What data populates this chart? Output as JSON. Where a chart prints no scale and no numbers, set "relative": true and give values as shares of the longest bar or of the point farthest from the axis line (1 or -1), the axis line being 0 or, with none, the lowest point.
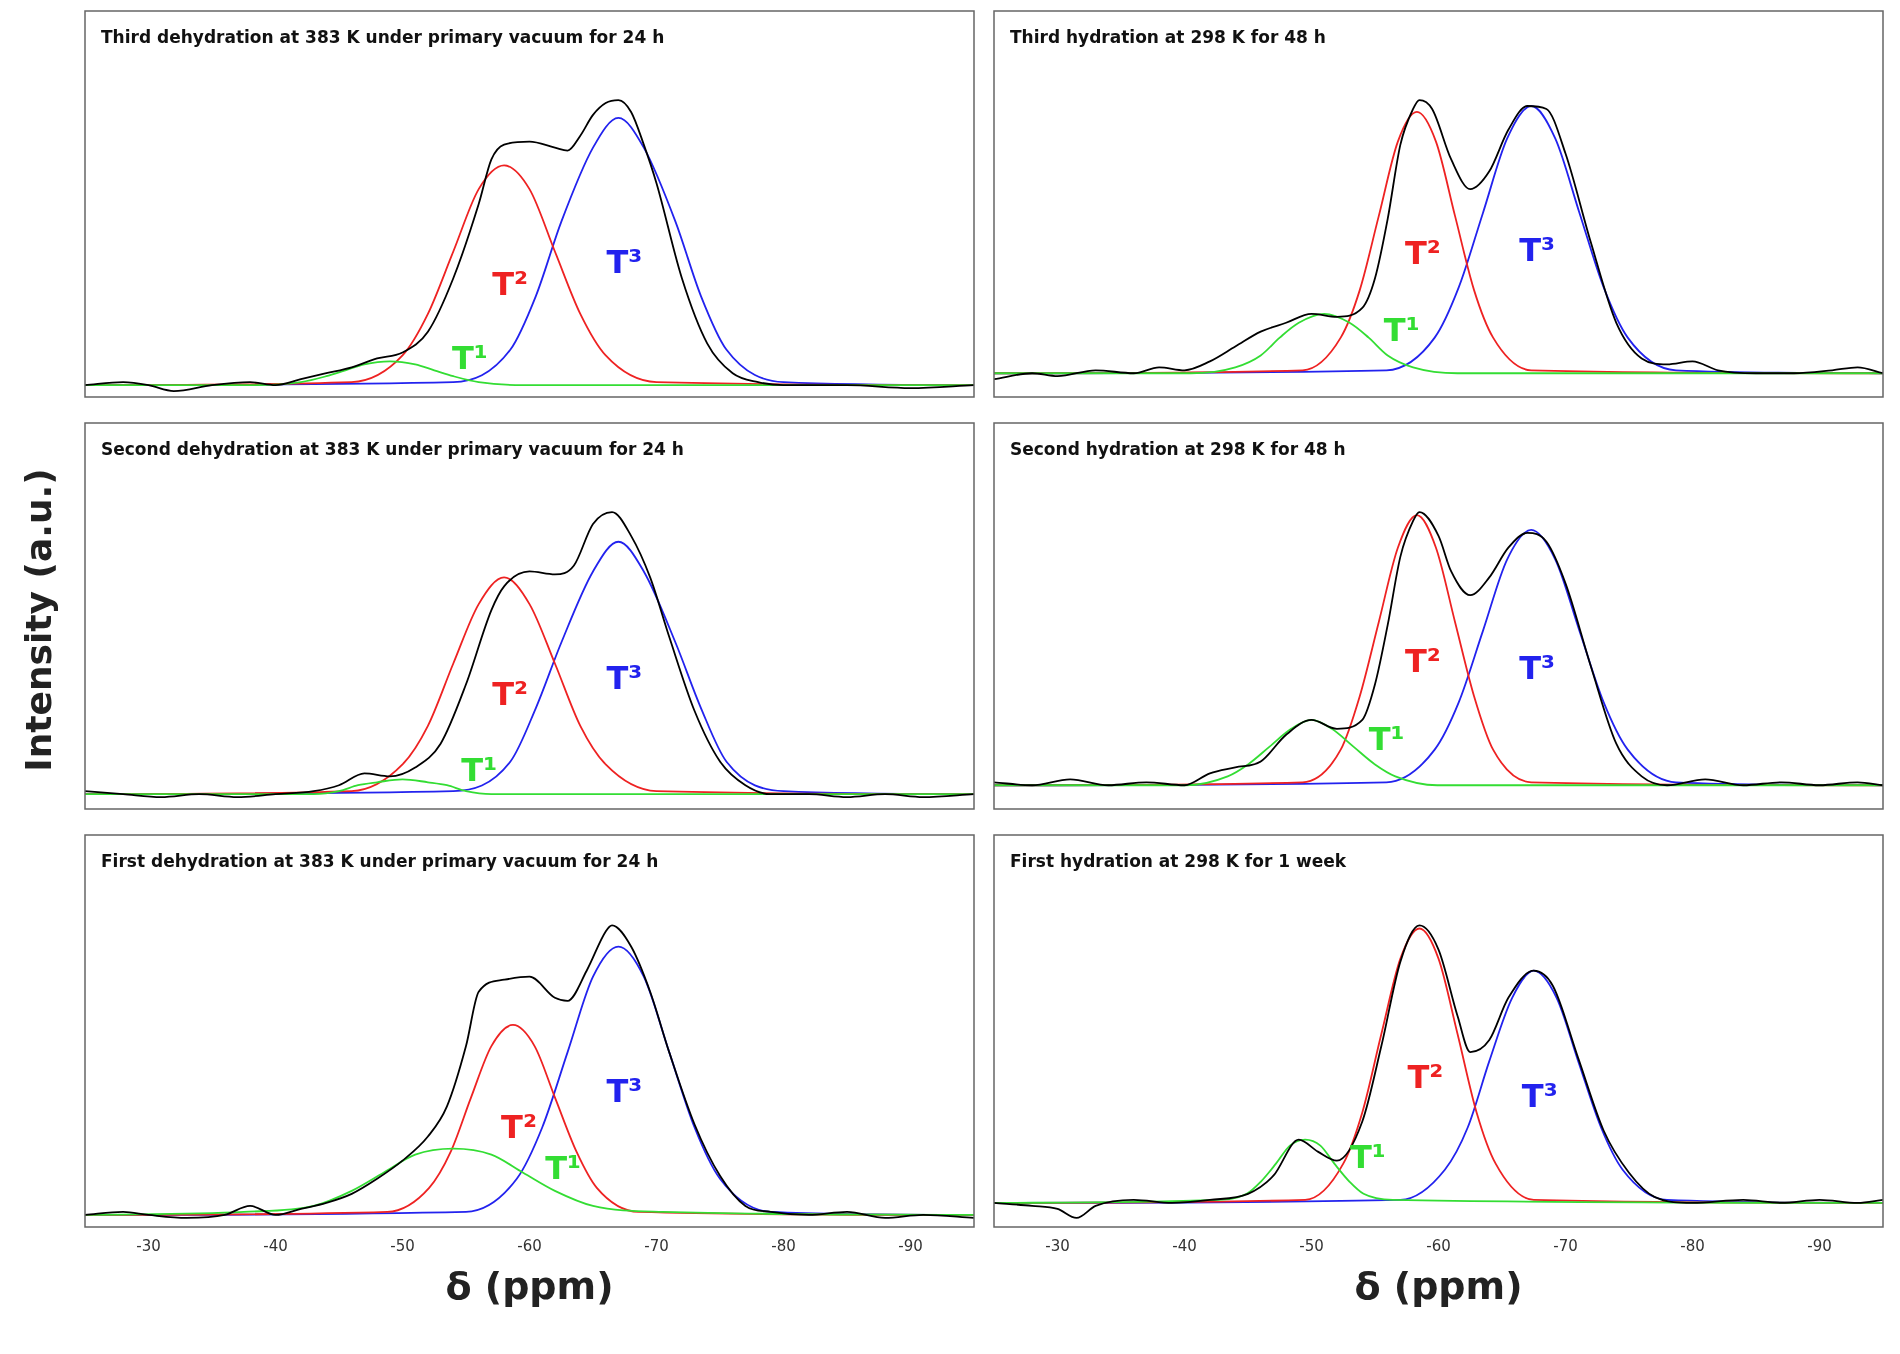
{
  "chart_data": [
    {
      "type": "line",
      "title": "Third dehydration at 383 K under primary vacuum for 24 h",
      "relative": true,
      "xlim": [
        -25,
        -95
      ],
      "tick_labels": false,
      "series": [
        {
          "color": "#000000",
          "x": [
            -25,
            -28,
            -30,
            -32,
            -35,
            -38,
            -40,
            -42,
            -44,
            -46,
            -48,
            -50,
            -52,
            -54,
            -56,
            -57,
            -58,
            -60,
            -62,
            -63,
            -64,
            -65,
            -66,
            -67,
            -68,
            -69,
            -70,
            -72,
            -74,
            -76,
            -78,
            -80,
            -85,
            -90,
            -95
          ],
          "values": [
            0.04,
            0.05,
            0.04,
            0.02,
            0.04,
            0.05,
            0.04,
            0.06,
            0.08,
            0.1,
            0.13,
            0.15,
            0.22,
            0.4,
            0.65,
            0.8,
            0.85,
            0.86,
            0.84,
            0.83,
            0.88,
            0.95,
            0.99,
            1.0,
            0.96,
            0.85,
            0.72,
            0.4,
            0.18,
            0.08,
            0.05,
            0.04,
            0.04,
            0.03,
            0.04
          ]
        },
        {
          "color": "#33dd33",
          "name": "T¹",
          "x": [
            -25,
            -38.5,
            -42,
            -44,
            -45.5,
            -47,
            -49,
            -51,
            -52.5,
            -54,
            -56,
            -59.5,
            -95
          ],
          "values": [
            0.04,
            0.04,
            0.05,
            0.07,
            0.09,
            0.11,
            0.12,
            0.11,
            0.09,
            0.07,
            0.05,
            0.04,
            0.04
          ]
        },
        {
          "color": "#ee2222",
          "name": "T²",
          "x": [
            -25,
            -46,
            -50,
            -52,
            -54,
            -56,
            -58,
            -60,
            -62,
            -64,
            -66,
            -70,
            -95
          ],
          "values": [
            0.04,
            0.05,
            0.14,
            0.28,
            0.49,
            0.7,
            0.78,
            0.7,
            0.49,
            0.28,
            0.14,
            0.05,
            0.04
          ]
        },
        {
          "color": "#2222ee",
          "name": "T³",
          "x": [
            -25,
            -54,
            -58.5,
            -60.5,
            -62.5,
            -65,
            -67,
            -69,
            -71.5,
            -73.5,
            -75.5,
            -80,
            -95
          ],
          "values": [
            0.04,
            0.05,
            0.16,
            0.34,
            0.59,
            0.84,
            0.94,
            0.84,
            0.59,
            0.34,
            0.16,
            0.05,
            0.04
          ]
        }
      ]
    },
    {
      "type": "line",
      "title": "Third hydration at 298 K for 48 h",
      "relative": true,
      "xlim": [
        -25,
        -95
      ],
      "tick_labels": false,
      "series": [
        {
          "color": "#000000",
          "x": [
            -25,
            -28,
            -30,
            -33,
            -36,
            -38,
            -40,
            -42,
            -44,
            -46,
            -48,
            -50,
            -52,
            -54,
            -55,
            -56,
            -57,
            -58,
            -58.5,
            -59.5,
            -61,
            -62.5,
            -64,
            -65.5,
            -67,
            -68.5,
            -70,
            -72,
            -74,
            -76,
            -78,
            -80,
            -82,
            -85,
            -88,
            -91,
            -93,
            -95
          ],
          "values": [
            0.06,
            0.08,
            0.07,
            0.09,
            0.08,
            0.1,
            0.09,
            0.12,
            0.17,
            0.22,
            0.25,
            0.28,
            0.27,
            0.3,
            0.4,
            0.6,
            0.85,
            0.97,
            1.0,
            0.97,
            0.8,
            0.7,
            0.76,
            0.9,
            0.98,
            0.97,
            0.82,
            0.52,
            0.25,
            0.13,
            0.11,
            0.12,
            0.09,
            0.08,
            0.08,
            0.09,
            0.1,
            0.08
          ]
        },
        {
          "color": "#33dd33",
          "name": "T¹",
          "x": [
            -25,
            -40.5,
            -44,
            -46,
            -47.5,
            -49,
            -51,
            -53,
            -54.5,
            -56,
            -58,
            -61.5,
            -95
          ],
          "values": [
            0.08,
            0.08,
            0.1,
            0.14,
            0.2,
            0.25,
            0.28,
            0.25,
            0.2,
            0.14,
            0.1,
            0.08,
            0.08
          ]
        },
        {
          "color": "#ee2222",
          "name": "T²",
          "x": [
            -25,
            -49.3,
            -52.3,
            -53.8,
            -55.3,
            -56.8,
            -58.3,
            -59.8,
            -61.3,
            -62.8,
            -64.3,
            -67.3,
            -95
          ],
          "values": [
            0.08,
            0.09,
            0.2,
            0.36,
            0.61,
            0.86,
            0.96,
            0.86,
            0.61,
            0.36,
            0.2,
            0.09,
            0.08
          ]
        },
        {
          "color": "#2222ee",
          "name": "T³",
          "x": [
            -25,
            -55.9,
            -59.7,
            -61.6,
            -63.5,
            -65.4,
            -67.3,
            -69.2,
            -71.1,
            -73,
            -74.9,
            -78.7,
            -95
          ],
          "values": [
            0.08,
            0.09,
            0.2,
            0.37,
            0.62,
            0.87,
            0.98,
            0.87,
            0.62,
            0.37,
            0.2,
            0.09,
            0.08
          ]
        }
      ]
    },
    {
      "type": "line",
      "title": "Second dehydration at 383 K under primary vacuum for 24 h",
      "ylabel": "Intensity (a.u.)",
      "relative": true,
      "xlim": [
        -25,
        -95
      ],
      "tick_labels": false,
      "series": [
        {
          "color": "#000000",
          "x": [
            -25,
            -28,
            -31,
            -34,
            -37,
            -40,
            -43,
            -45,
            -47,
            -49,
            -51,
            -53,
            -55,
            -57,
            -58,
            -60,
            -62,
            -63.5,
            -65,
            -66.5,
            -68,
            -69.5,
            -71,
            -73,
            -75,
            -77,
            -79,
            -82,
            -85,
            -88,
            -91,
            -95
          ],
          "values": [
            0.06,
            0.05,
            0.04,
            0.05,
            0.04,
            0.05,
            0.06,
            0.08,
            0.12,
            0.11,
            0.14,
            0.22,
            0.42,
            0.67,
            0.75,
            0.8,
            0.79,
            0.82,
            0.96,
            1.0,
            0.92,
            0.78,
            0.58,
            0.33,
            0.16,
            0.08,
            0.05,
            0.05,
            0.04,
            0.05,
            0.04,
            0.05
          ]
        },
        {
          "color": "#33dd33",
          "name": "T¹",
          "x": [
            -25,
            -39.5,
            -43,
            -45,
            -46.5,
            -48,
            -50,
            -52,
            -53.5,
            -55,
            -57,
            -60.5,
            -95
          ],
          "values": [
            0.05,
            0.05,
            0.05,
            0.06,
            0.08,
            0.09,
            0.1,
            0.09,
            0.08,
            0.06,
            0.05,
            0.05,
            0.05
          ]
        },
        {
          "color": "#ee2222",
          "name": "T²",
          "x": [
            -25,
            -46,
            -50,
            -52,
            -54,
            -56,
            -58,
            -60,
            -62,
            -64,
            -66,
            -70,
            -95
          ],
          "values": [
            0.05,
            0.06,
            0.15,
            0.28,
            0.49,
            0.69,
            0.78,
            0.69,
            0.49,
            0.28,
            0.15,
            0.06,
            0.05
          ]
        },
        {
          "color": "#2222ee",
          "name": "T³",
          "x": [
            -25,
            -54,
            -58.5,
            -60.5,
            -62.5,
            -65,
            -67,
            -69,
            -71.5,
            -73.5,
            -75.5,
            -80,
            -95
          ],
          "values": [
            0.05,
            0.06,
            0.16,
            0.34,
            0.56,
            0.8,
            0.9,
            0.8,
            0.56,
            0.34,
            0.16,
            0.06,
            0.05
          ]
        }
      ]
    },
    {
      "type": "line",
      "title": "Second hydration at 298 K for 48 h",
      "relative": true,
      "xlim": [
        -25,
        -95
      ],
      "tick_labels": false,
      "series": [
        {
          "color": "#000000",
          "x": [
            -25,
            -28,
            -31,
            -34,
            -37,
            -40,
            -42,
            -44,
            -46,
            -48,
            -50,
            -52,
            -54,
            -55,
            -56,
            -57,
            -58,
            -58.5,
            -60,
            -61,
            -62.5,
            -64,
            -65.5,
            -67,
            -68.5,
            -70,
            -72,
            -74,
            -76,
            -78,
            -81,
            -84,
            -87,
            -90,
            -93,
            -95
          ],
          "values": [
            0.09,
            0.08,
            0.1,
            0.08,
            0.09,
            0.08,
            0.12,
            0.14,
            0.16,
            0.25,
            0.3,
            0.27,
            0.3,
            0.42,
            0.62,
            0.85,
            0.97,
            1.0,
            0.92,
            0.8,
            0.72,
            0.78,
            0.88,
            0.93,
            0.9,
            0.76,
            0.48,
            0.22,
            0.11,
            0.08,
            0.1,
            0.08,
            0.09,
            0.08,
            0.09,
            0.08
          ]
        },
        {
          "color": "#33dd33",
          "name": "T¹",
          "x": [
            -25,
            -40.1,
            -43.4,
            -45,
            -46.7,
            -48.4,
            -50,
            -51.6,
            -53.3,
            -55,
            -56.6,
            -59.9,
            -95
          ],
          "values": [
            0.08,
            0.08,
            0.11,
            0.15,
            0.21,
            0.27,
            0.3,
            0.27,
            0.21,
            0.15,
            0.11,
            0.08,
            0.08
          ]
        },
        {
          "color": "#ee2222",
          "name": "T²",
          "x": [
            -25,
            -49.3,
            -52.3,
            -53.8,
            -55.3,
            -56.8,
            -58.3,
            -59.8,
            -61.3,
            -62.8,
            -64.3,
            -67.3,
            -95
          ],
          "values": [
            0.08,
            0.09,
            0.2,
            0.38,
            0.63,
            0.88,
            0.99,
            0.88,
            0.63,
            0.38,
            0.2,
            0.09,
            0.08
          ]
        },
        {
          "color": "#2222ee",
          "name": "T³",
          "x": [
            -25,
            -55.9,
            -59.7,
            -61.6,
            -63.5,
            -65.4,
            -67.3,
            -69.2,
            -71.1,
            -73,
            -74.9,
            -78.7,
            -95
          ],
          "values": [
            0.08,
            0.09,
            0.2,
            0.36,
            0.6,
            0.84,
            0.94,
            0.84,
            0.6,
            0.36,
            0.2,
            0.09,
            0.08
          ]
        }
      ]
    },
    {
      "type": "line",
      "title": "First dehydration at 383 K under primary vacuum for 24 h",
      "xlabel": "δ (ppm)",
      "relative": true,
      "xlim": [
        -25,
        -95
      ],
      "xticks": [
        -30,
        -40,
        -50,
        -60,
        -70,
        -80,
        -90
      ],
      "tick_labels": "x",
      "series": [
        {
          "color": "#000000",
          "x": [
            -25,
            -28,
            -30,
            -33,
            -36,
            -38,
            -40,
            -42,
            -44,
            -46,
            -48,
            -50,
            -52,
            -53.5,
            -55,
            -56,
            -58,
            -60,
            -62,
            -63,
            -64.5,
            -66,
            -66.5,
            -68,
            -69.5,
            -71,
            -73,
            -75,
            -77,
            -79,
            -82,
            -85,
            -88,
            -91,
            -95
          ],
          "values": [
            0.04,
            0.05,
            0.04,
            0.03,
            0.04,
            0.07,
            0.04,
            0.06,
            0.08,
            0.11,
            0.16,
            0.22,
            0.3,
            0.4,
            0.6,
            0.78,
            0.82,
            0.83,
            0.76,
            0.75,
            0.85,
            0.98,
            1.0,
            0.93,
            0.78,
            0.58,
            0.34,
            0.17,
            0.07,
            0.05,
            0.04,
            0.05,
            0.03,
            0.04,
            0.03
          ]
        },
        {
          "color": "#33dd33",
          "name": "T¹",
          "x": [
            -25,
            -37.5,
            -43,
            -46,
            -48.5,
            -51,
            -54,
            -57,
            -59.5,
            -62,
            -65,
            -70.5,
            -95
          ],
          "values": [
            0.04,
            0.05,
            0.07,
            0.12,
            0.18,
            0.24,
            0.26,
            0.24,
            0.18,
            0.12,
            0.07,
            0.05,
            0.04
          ]
        },
        {
          "color": "#ee2222",
          "name": "T²",
          "x": [
            -25,
            -48.8,
            -52.1,
            -53.8,
            -55.4,
            -57,
            -58.7,
            -60.4,
            -62,
            -63.7,
            -65.3,
            -68.6,
            -95
          ],
          "values": [
            0.04,
            0.05,
            0.13,
            0.25,
            0.43,
            0.6,
            0.67,
            0.6,
            0.43,
            0.25,
            0.13,
            0.05,
            0.04
          ]
        },
        {
          "color": "#2222ee",
          "name": "T³",
          "x": [
            -25,
            -55,
            -59,
            -61,
            -63,
            -65,
            -67,
            -69,
            -71,
            -73,
            -75,
            -79,
            -95
          ],
          "values": [
            0.04,
            0.05,
            0.16,
            0.33,
            0.58,
            0.83,
            0.93,
            0.83,
            0.58,
            0.33,
            0.16,
            0.05,
            0.04
          ]
        }
      ]
    },
    {
      "type": "line",
      "title": "First hydration at 298 K for 1 week",
      "xlabel": "δ (ppm)",
      "relative": true,
      "xlim": [
        -25,
        -95
      ],
      "xticks": [
        -30,
        -40,
        -50,
        -60,
        -70,
        -80,
        -90
      ],
      "tick_labels": "x",
      "series": [
        {
          "color": "#000000",
          "x": [
            -25,
            -28,
            -30,
            -31.5,
            -33,
            -36,
            -39,
            -42,
            -45,
            -47,
            -49,
            -50.5,
            -52,
            -54,
            -55.5,
            -57,
            -58.5,
            -60,
            -61.5,
            -62.5,
            -64,
            -65.5,
            -67.5,
            -69,
            -71,
            -73,
            -75,
            -77,
            -80,
            -84,
            -87,
            -90,
            -93,
            -95
          ],
          "values": [
            0.08,
            0.07,
            0.06,
            0.03,
            0.07,
            0.09,
            0.08,
            0.09,
            0.11,
            0.17,
            0.29,
            0.25,
            0.22,
            0.35,
            0.6,
            0.88,
            1.0,
            0.92,
            0.7,
            0.58,
            0.62,
            0.76,
            0.85,
            0.8,
            0.56,
            0.32,
            0.18,
            0.1,
            0.08,
            0.09,
            0.08,
            0.09,
            0.08,
            0.09
          ]
        },
        {
          "color": "#33dd33",
          "name": "T¹",
          "x": [
            -25,
            -42.6,
            -44.9,
            -46,
            -47.2,
            -48.3,
            -49.5,
            -50.7,
            -51.8,
            -53,
            -54.1,
            -56.4,
            -95
          ],
          "values": [
            0.08,
            0.09,
            0.11,
            0.15,
            0.21,
            0.27,
            0.29,
            0.27,
            0.21,
            0.15,
            0.11,
            0.09,
            0.08
          ]
        },
        {
          "color": "#ee2222",
          "name": "T²",
          "x": [
            -25,
            -49.5,
            -52.5,
            -54,
            -55.5,
            -57,
            -58.5,
            -60,
            -61.5,
            -63,
            -64.5,
            -67.5,
            -95
          ],
          "values": [
            0.08,
            0.09,
            0.21,
            0.38,
            0.64,
            0.89,
            0.99,
            0.89,
            0.64,
            0.38,
            0.21,
            0.09,
            0.08
          ]
        },
        {
          "color": "#2222ee",
          "name": "T³",
          "x": [
            -25,
            -57,
            -60.5,
            -62.3,
            -64,
            -65.8,
            -67.5,
            -69.3,
            -71,
            -72.8,
            -74.5,
            -78,
            -95
          ],
          "values": [
            0.08,
            0.09,
            0.19,
            0.33,
            0.55,
            0.76,
            0.85,
            0.76,
            0.55,
            0.33,
            0.19,
            0.09,
            0.08
          ]
        }
      ]
    }
  ]
}
